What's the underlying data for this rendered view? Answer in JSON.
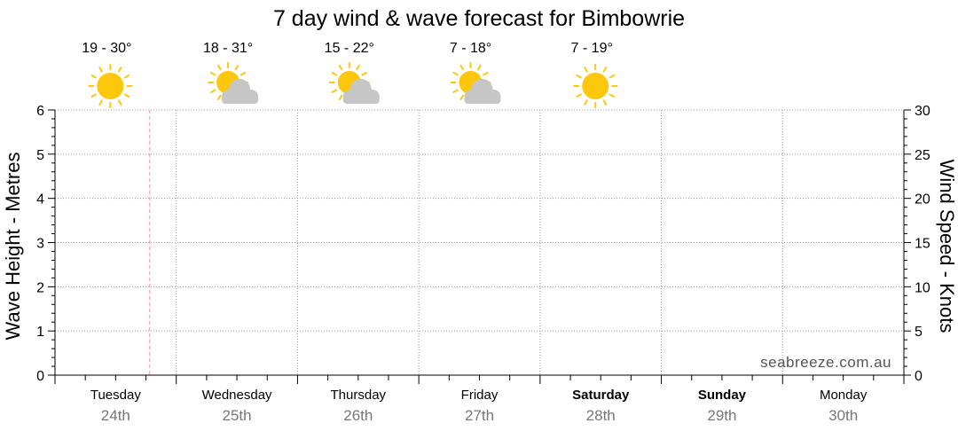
{
  "chart_data": {
    "type": "line",
    "title": "7 day wind & wave forecast for Bimbowrie",
    "ylabel_left": "Wave Height - Metres",
    "ylabel_right": "Wind Speed - Knots",
    "ylim_left": [
      0,
      6
    ],
    "ylim_right": [
      0,
      30
    ],
    "yticks_left": [
      "0",
      "1",
      "2",
      "3",
      "4",
      "5",
      "6"
    ],
    "yticks_right": [
      "0",
      "5",
      "10",
      "15",
      "20",
      "25",
      "30"
    ],
    "grid": true,
    "days": [
      {
        "name": "Tuesday",
        "date": "24th",
        "bold": false,
        "temp": "19 - 30°",
        "icon": "sunny-icon"
      },
      {
        "name": "Wednesday",
        "date": "25th",
        "bold": false,
        "temp": "18 - 31°",
        "icon": "partly-cloudy-icon"
      },
      {
        "name": "Thursday",
        "date": "26th",
        "bold": false,
        "temp": "15 - 22°",
        "icon": "partly-cloudy-icon"
      },
      {
        "name": "Friday",
        "date": "27th",
        "bold": false,
        "temp": "7 - 18°",
        "icon": "partly-cloudy-icon"
      },
      {
        "name": "Saturday",
        "date": "28th",
        "bold": true,
        "temp": "7 - 19°",
        "icon": "sunny-icon"
      },
      {
        "name": "Sunday",
        "date": "29th",
        "bold": true,
        "temp": "",
        "icon": ""
      },
      {
        "name": "Monday",
        "date": "30th",
        "bold": false,
        "temp": "",
        "icon": ""
      }
    ],
    "series": [],
    "now_marker_day_fraction": 0.78
  },
  "watermark": "seabreeze.com.au",
  "colors": {
    "sun": "#fdc70c",
    "sun_rays": "#fdc70c",
    "cloud": "#c6c6c6",
    "now_marker": "#f4a0a0",
    "grid": "#999999",
    "axis": "#000000",
    "date_text": "#777777"
  }
}
